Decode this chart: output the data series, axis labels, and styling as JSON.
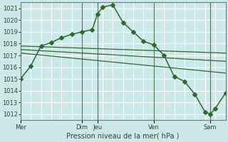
{
  "xlabel": "Pression niveau de la mer( hPa )",
  "bg_color": "#cce8e8",
  "grid_color": "#ffffff",
  "line_color": "#2d6a2d",
  "ylim": [
    1011.5,
    1021.5
  ],
  "yticks": [
    1012,
    1013,
    1014,
    1015,
    1016,
    1017,
    1018,
    1019,
    1020,
    1021
  ],
  "xlim": [
    0,
    20
  ],
  "xtick_positions": [
    0,
    6,
    7.5,
    13,
    18.5
  ],
  "xtick_labels": [
    "Mer",
    "Dim",
    "Jeu",
    "Ven",
    "Sam"
  ],
  "vline_positions": [
    0,
    6,
    7.5,
    13,
    18.5
  ],
  "main_x": [
    0,
    1,
    2,
    3,
    4,
    5,
    6,
    7,
    7.5,
    8,
    9,
    10,
    11,
    12,
    13,
    14,
    15,
    16,
    17,
    18,
    18.5,
    19,
    20
  ],
  "main_y": [
    1015.0,
    1016.1,
    1017.8,
    1018.1,
    1018.5,
    1018.8,
    1019.0,
    1019.2,
    1020.5,
    1021.1,
    1021.3,
    1019.8,
    1019.0,
    1018.2,
    1017.9,
    1017.0,
    1015.2,
    1014.8,
    1013.7,
    1012.2,
    1012.0,
    1012.5,
    1013.8
  ],
  "trend1_x": [
    0,
    20
  ],
  "trend1_y": [
    1017.8,
    1017.2
  ],
  "trend2_x": [
    0,
    20
  ],
  "trend2_y": [
    1017.5,
    1016.5
  ],
  "trend3_x": [
    0,
    20
  ],
  "trend3_y": [
    1017.2,
    1015.5
  ],
  "xlabel_fontsize": 7,
  "tick_fontsize": 6,
  "line_width": 1.0,
  "marker_size": 3
}
